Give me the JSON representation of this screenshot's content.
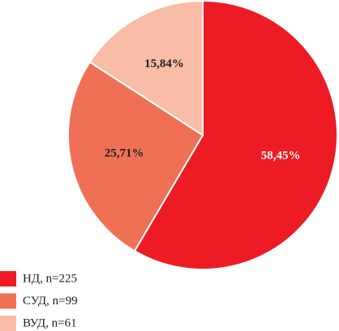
{
  "chart_data": {
    "type": "pie",
    "categories": [
      "НД, n=225",
      "СУД, n=99",
      "ВУД, n=61"
    ],
    "values": [
      58.45,
      25.71,
      15.84
    ],
    "value_labels": [
      "58,45%",
      "25,71%",
      "15,84%"
    ],
    "colors": [
      "#ed1c24",
      "#f07056",
      "#f9bca6"
    ],
    "label_colors": [
      "#ffffff",
      "#231f20",
      "#231f20"
    ],
    "legend": "bottom-left"
  }
}
